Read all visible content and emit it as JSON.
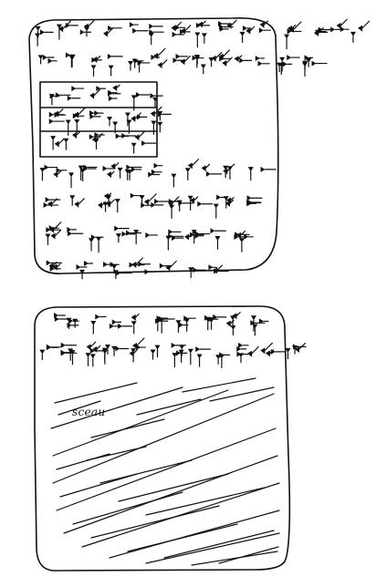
{
  "annotation": {
    "seal_word": "sceau"
  },
  "colors": {
    "ink": "#111111",
    "paper": "#ffffff"
  }
}
